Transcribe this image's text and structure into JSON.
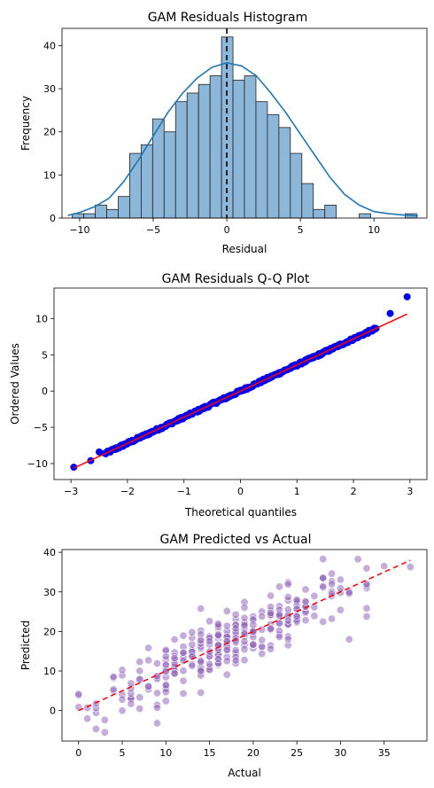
{
  "chart_data": [
    {
      "type": "bar",
      "title": "GAM Residuals Histogram",
      "xlabel": "Residual",
      "ylabel": "Frequency",
      "xlim": [
        -11.2,
        13.6
      ],
      "ylim": [
        0,
        44
      ],
      "xticks": [
        -10,
        -5,
        0,
        5,
        10
      ],
      "yticks": [
        0,
        10,
        20,
        30,
        40
      ],
      "bin_start": -10.5,
      "bin_width": 0.78,
      "values": [
        1,
        1,
        3,
        2,
        5,
        15,
        17,
        23,
        20,
        27,
        29,
        31,
        33,
        42,
        32,
        33,
        27,
        24,
        21,
        15,
        8,
        2,
        3,
        0,
        0,
        1,
        0,
        0,
        0,
        1
      ],
      "kde": [
        [
          -10.8,
          0.6
        ],
        [
          -10,
          1.3
        ],
        [
          -9,
          2.6
        ],
        [
          -8,
          4.6
        ],
        [
          -7,
          8.5
        ],
        [
          -6,
          13.5
        ],
        [
          -5,
          19
        ],
        [
          -4,
          24.5
        ],
        [
          -3,
          29
        ],
        [
          -2,
          32.5
        ],
        [
          -1,
          35
        ],
        [
          0,
          36
        ],
        [
          1,
          35.3
        ],
        [
          2,
          33
        ],
        [
          3,
          29
        ],
        [
          4,
          24.5
        ],
        [
          5,
          19.5
        ],
        [
          6,
          14.5
        ],
        [
          7,
          9.5
        ],
        [
          8,
          5.5
        ],
        [
          9,
          3
        ],
        [
          10,
          1.5
        ],
        [
          11,
          1
        ],
        [
          12,
          0.7
        ],
        [
          13,
          0.5
        ]
      ],
      "mean_line_x": 0,
      "bar_color": "#8cb7d9",
      "kde_color": "#1f77b4"
    },
    {
      "type": "scatter",
      "title": "GAM Residuals Q-Q Plot",
      "xlabel": "Theoretical quantiles",
      "ylabel": "Ordered Values",
      "xlim": [
        -3.3,
        3.3
      ],
      "ylim": [
        -12.2,
        14.2
      ],
      "xticks": [
        -3,
        -2,
        -1,
        0,
        1,
        2,
        3
      ],
      "yticks": [
        -10,
        -5,
        0,
        5,
        10
      ],
      "slope": 3.6,
      "intercept": 0,
      "fit_line_x": [
        -2.95,
        2.95
      ],
      "outlier_points": [
        [
          -2.95,
          -10.5
        ],
        [
          -2.65,
          -9.6
        ],
        [
          -2.5,
          -8.4
        ],
        [
          2.95,
          13.0
        ],
        [
          2.65,
          10.7
        ]
      ],
      "point_color": "#0000ee",
      "line_color": "#ff0000"
    },
    {
      "type": "scatter",
      "title": "GAM Predicted vs Actual",
      "xlabel": "Actual",
      "ylabel": "Predicted",
      "xlim": [
        -1.9,
        39.9
      ],
      "ylim": [
        -7.7,
        40.7
      ],
      "xticks": [
        0,
        5,
        10,
        15,
        20,
        25,
        30,
        35
      ],
      "yticks": [
        0,
        10,
        20,
        30,
        40
      ],
      "diagonal": [
        [
          0,
          0
        ],
        [
          38,
          38
        ]
      ],
      "point_color": "#9467bd",
      "line_color": "#ff0000"
    }
  ]
}
